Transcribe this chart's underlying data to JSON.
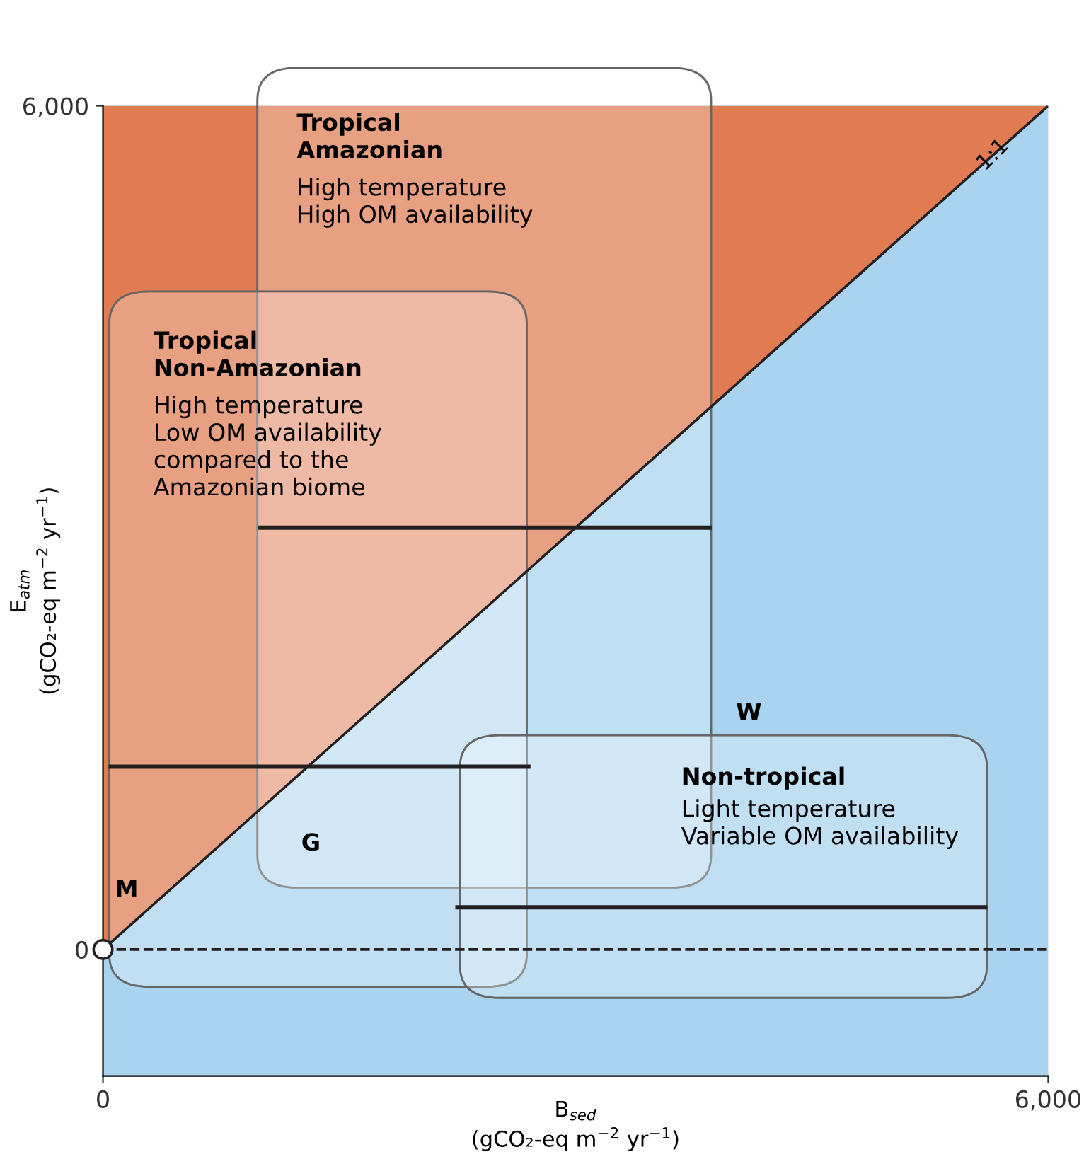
{
  "chart_data": {
    "type": "line",
    "xlabel": "B$_{sed}$\n(gCO₂-eq m$^{−2}$ yr$^{−1}$)",
    "ylabel": "E$_{atm}$\n(gCO₂-eq m$^{−2}$ yr$^{−1}$)",
    "xlim": [
      0,
      6000
    ],
    "ylim": [
      -900,
      6000
    ],
    "xticks": [
      0,
      {
        "value": 6000,
        "label": "6,000"
      }
    ],
    "yticks": [
      0,
      {
        "value": 6000,
        "label": "6,000"
      }
    ],
    "grid": false,
    "legend": false,
    "series": [
      {
        "color": "#231f20",
        "x": [
          0,
          6000
        ],
        "values": [
          0,
          6000
        ]
      },
      {
        "color": "#231f20",
        "x": [
          1000,
          3850
        ],
        "values": [
          3000,
          3000
        ]
      },
      {
        "color": "#231f20",
        "x": [
          50,
          2700
        ],
        "values": [
          1300,
          1300
        ]
      },
      {
        "color": "#231f20",
        "x": [
          2250,
          5600
        ],
        "values": [
          300,
          300
        ]
      },
      {
        "type": "scatter",
        "color": "#231f20",
        "marker": "circle",
        "x": [
          0
        ],
        "values": [
          0
        ]
      }
    ],
    "ref_lines": [
      {
        "axis": "y",
        "value": 0,
        "line_style": "dashed",
        "color": "#231f20"
      }
    ],
    "annotations": [
      {
        "text": "1:1",
        "x": 5650,
        "y": 5650
      },
      "M",
      "G",
      "W",
      "Tropical\nAmazonian",
      "High temperature\nHigh OM availability",
      "Tropical\nNon-Amazonian",
      "High temperature\nLow OM availability\ncompared to the\nAmazonian biome",
      "Non-tropical",
      "Light temperature\nVariable OM availability"
    ]
  }
}
